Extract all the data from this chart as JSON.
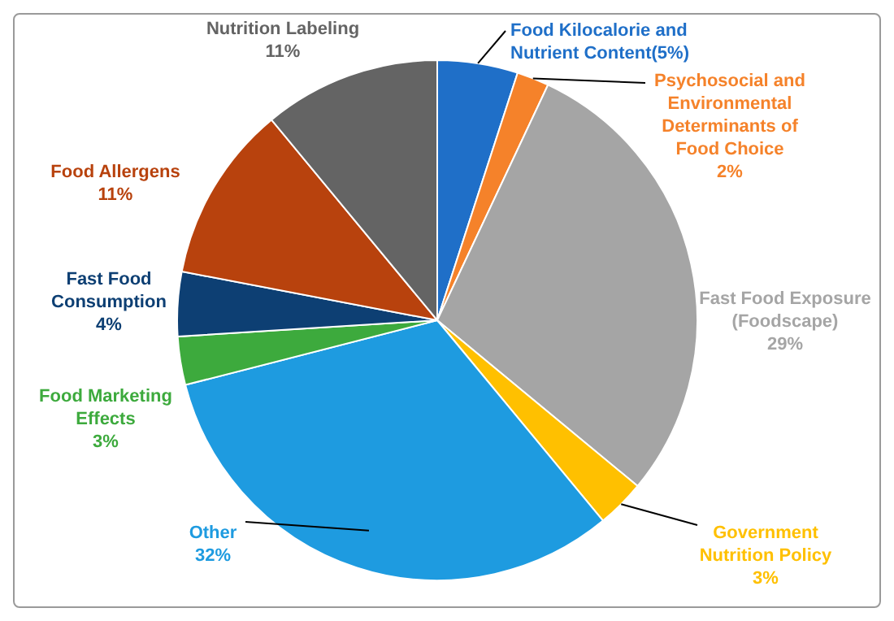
{
  "chart_data": {
    "type": "pie",
    "categories": [
      "Food Kilocalorie and Nutrient Content(5%)",
      "Psychosocial and Environmental Determinants of Food Choice",
      "Fast Food Exposure (Foodscape)",
      "Government Nutrition Policy",
      "Other",
      "Food Marketing Effects",
      "Fast Food Consumption",
      "Food Allergens",
      "Nutrition Labeling"
    ],
    "values": [
      5,
      2,
      29,
      3,
      32,
      3,
      4,
      11,
      11
    ],
    "value_labels": [
      null,
      "2%",
      "29%",
      "3%",
      "32%",
      "3%",
      "4%",
      "11%",
      "11%"
    ],
    "colors": [
      "#1f6fc8",
      "#f5822a",
      "#a5a5a5",
      "#ffc000",
      "#1e9be0",
      "#3daa3d",
      "#0d3f73",
      "#b8420d",
      "#646464"
    ]
  }
}
